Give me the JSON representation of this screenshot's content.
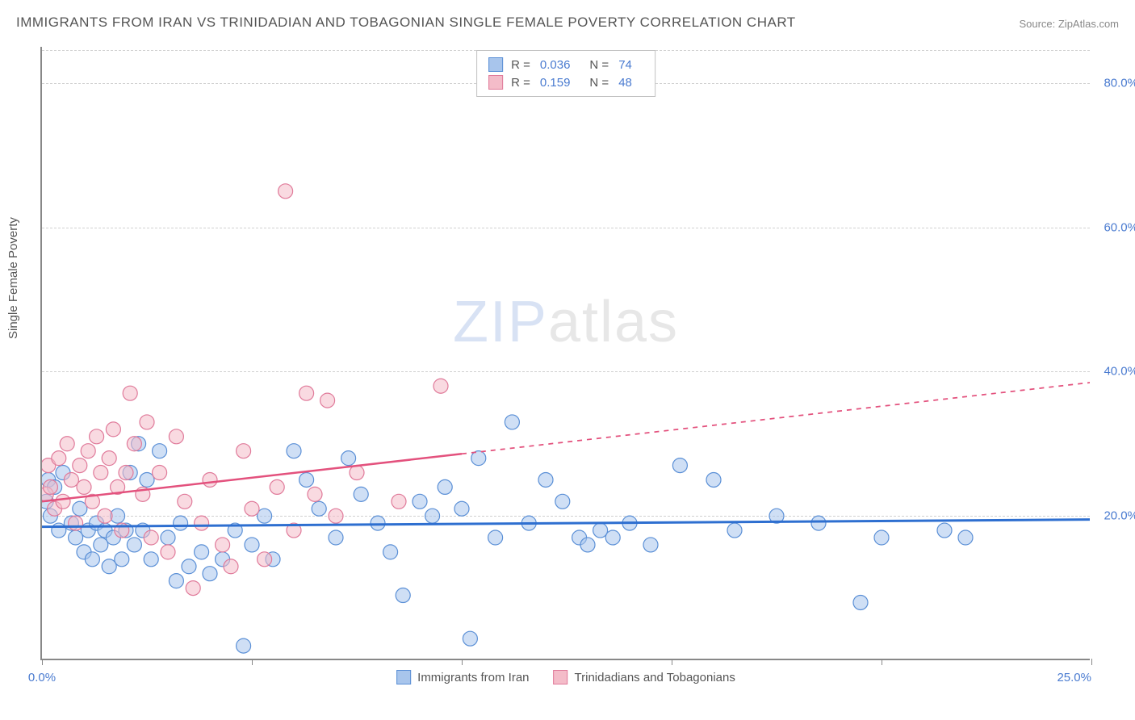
{
  "title": "IMMIGRANTS FROM IRAN VS TRINIDADIAN AND TOBAGONIAN SINGLE FEMALE POVERTY CORRELATION CHART",
  "source_label": "Source: ZipAtlas.com",
  "y_axis_label": "Single Female Poverty",
  "watermark": {
    "part1": "ZIP",
    "part2": "atlas"
  },
  "chart": {
    "type": "scatter",
    "background_color": "#ffffff",
    "grid_color": "#d0d0d0",
    "axis_color": "#888888",
    "tick_label_color": "#4a7bd0",
    "x": {
      "min": 0,
      "max": 25,
      "ticks": [
        0,
        5,
        10,
        15,
        20,
        25
      ],
      "tick_labels": [
        "0.0%",
        "",
        "",
        "",
        "",
        "25.0%"
      ]
    },
    "y": {
      "min": 0,
      "max": 85,
      "gridlines": [
        20,
        40,
        60,
        80
      ],
      "tick_labels": [
        "20.0%",
        "40.0%",
        "60.0%",
        "80.0%"
      ]
    },
    "marker_radius": 9,
    "marker_opacity": 0.55,
    "series": [
      {
        "name": "Immigrants from Iran",
        "color_fill": "#a8c5ec",
        "color_stroke": "#5a8fd6",
        "r_value": "0.036",
        "n_value": "74",
        "trend": {
          "y_start": 18.5,
          "y_end": 19.5,
          "x_solid_end": 25,
          "color": "#2e6fd0",
          "width": 3
        },
        "points": [
          [
            0.1,
            22
          ],
          [
            0.15,
            25
          ],
          [
            0.2,
            20
          ],
          [
            0.3,
            24
          ],
          [
            0.4,
            18
          ],
          [
            0.5,
            26
          ],
          [
            0.7,
            19
          ],
          [
            0.8,
            17
          ],
          [
            0.9,
            21
          ],
          [
            1.0,
            15
          ],
          [
            1.1,
            18
          ],
          [
            1.2,
            14
          ],
          [
            1.3,
            19
          ],
          [
            1.4,
            16
          ],
          [
            1.5,
            18
          ],
          [
            1.6,
            13
          ],
          [
            1.7,
            17
          ],
          [
            1.8,
            20
          ],
          [
            1.9,
            14
          ],
          [
            2.0,
            18
          ],
          [
            2.1,
            26
          ],
          [
            2.2,
            16
          ],
          [
            2.3,
            30
          ],
          [
            2.4,
            18
          ],
          [
            2.5,
            25
          ],
          [
            2.6,
            14
          ],
          [
            2.8,
            29
          ],
          [
            3.0,
            17
          ],
          [
            3.2,
            11
          ],
          [
            3.3,
            19
          ],
          [
            3.5,
            13
          ],
          [
            3.8,
            15
          ],
          [
            4.0,
            12
          ],
          [
            4.3,
            14
          ],
          [
            4.6,
            18
          ],
          [
            4.8,
            2
          ],
          [
            5.0,
            16
          ],
          [
            5.3,
            20
          ],
          [
            5.5,
            14
          ],
          [
            6.0,
            29
          ],
          [
            6.3,
            25
          ],
          [
            6.6,
            21
          ],
          [
            7.0,
            17
          ],
          [
            7.3,
            28
          ],
          [
            7.6,
            23
          ],
          [
            8.0,
            19
          ],
          [
            8.3,
            15
          ],
          [
            8.6,
            9
          ],
          [
            9.0,
            22
          ],
          [
            9.3,
            20
          ],
          [
            9.6,
            24
          ],
          [
            10.0,
            21
          ],
          [
            10.2,
            3
          ],
          [
            10.4,
            28
          ],
          [
            10.8,
            17
          ],
          [
            11.2,
            33
          ],
          [
            11.6,
            19
          ],
          [
            12.0,
            25
          ],
          [
            12.4,
            22
          ],
          [
            12.8,
            17
          ],
          [
            13.0,
            16
          ],
          [
            13.3,
            18
          ],
          [
            13.6,
            17
          ],
          [
            14.0,
            19
          ],
          [
            14.5,
            16
          ],
          [
            15.2,
            27
          ],
          [
            16.0,
            25
          ],
          [
            16.5,
            18
          ],
          [
            17.5,
            20
          ],
          [
            18.5,
            19
          ],
          [
            19.5,
            8
          ],
          [
            20.0,
            17
          ],
          [
            21.5,
            18
          ],
          [
            22.0,
            17
          ]
        ]
      },
      {
        "name": "Trinidadians and Tobagonians",
        "color_fill": "#f4bcc9",
        "color_stroke": "#e07a9a",
        "r_value": "0.159",
        "n_value": "48",
        "trend": {
          "y_start": 22,
          "y_end": 38.5,
          "x_solid_end": 10,
          "color": "#e3517d",
          "width": 2.5
        },
        "points": [
          [
            0.1,
            23
          ],
          [
            0.15,
            27
          ],
          [
            0.2,
            24
          ],
          [
            0.3,
            21
          ],
          [
            0.4,
            28
          ],
          [
            0.5,
            22
          ],
          [
            0.6,
            30
          ],
          [
            0.7,
            25
          ],
          [
            0.8,
            19
          ],
          [
            0.9,
            27
          ],
          [
            1.0,
            24
          ],
          [
            1.1,
            29
          ],
          [
            1.2,
            22
          ],
          [
            1.3,
            31
          ],
          [
            1.4,
            26
          ],
          [
            1.5,
            20
          ],
          [
            1.6,
            28
          ],
          [
            1.7,
            32
          ],
          [
            1.8,
            24
          ],
          [
            1.9,
            18
          ],
          [
            2.0,
            26
          ],
          [
            2.1,
            37
          ],
          [
            2.2,
            30
          ],
          [
            2.4,
            23
          ],
          [
            2.5,
            33
          ],
          [
            2.6,
            17
          ],
          [
            2.8,
            26
          ],
          [
            3.0,
            15
          ],
          [
            3.2,
            31
          ],
          [
            3.4,
            22
          ],
          [
            3.6,
            10
          ],
          [
            3.8,
            19
          ],
          [
            4.0,
            25
          ],
          [
            4.3,
            16
          ],
          [
            4.5,
            13
          ],
          [
            4.8,
            29
          ],
          [
            5.0,
            21
          ],
          [
            5.3,
            14
          ],
          [
            5.6,
            24
          ],
          [
            5.8,
            65
          ],
          [
            6.0,
            18
          ],
          [
            6.3,
            37
          ],
          [
            6.5,
            23
          ],
          [
            6.8,
            36
          ],
          [
            7.0,
            20
          ],
          [
            7.5,
            26
          ],
          [
            8.5,
            22
          ],
          [
            9.5,
            38
          ]
        ]
      }
    ],
    "legend_bottom": [
      {
        "label": "Immigrants from Iran",
        "fill": "#a8c5ec",
        "stroke": "#5a8fd6"
      },
      {
        "label": "Trinidadians and Tobagonians",
        "fill": "#f4bcc9",
        "stroke": "#e07a9a"
      }
    ],
    "legend_top_labels": {
      "r": "R =",
      "n": "N ="
    }
  }
}
